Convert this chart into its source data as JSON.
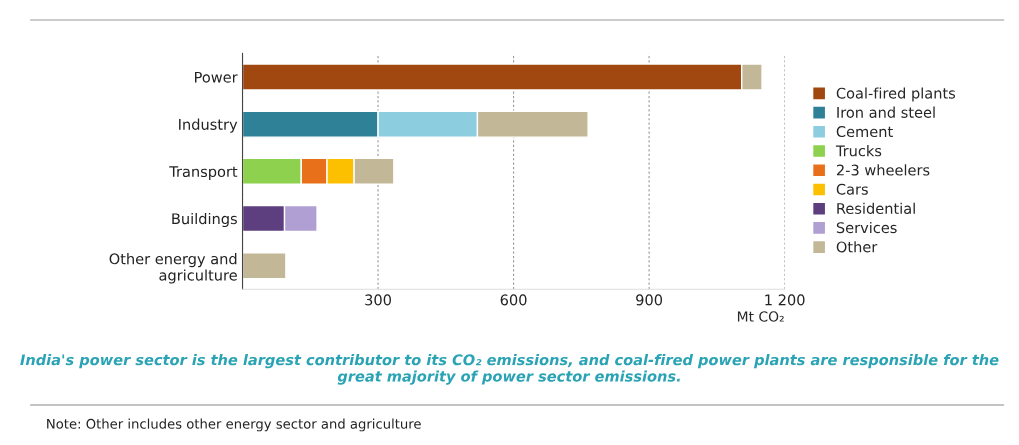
{
  "chart_data": {
    "type": "bar",
    "orientation": "horizontal",
    "stacked": true,
    "categories": [
      "Power",
      "Industry",
      "Transport",
      "Buildings",
      "Other energy and\nagriculture"
    ],
    "series": [
      {
        "name": "Coal-fired plants",
        "color": "#a0480f",
        "values": [
          1105,
          null,
          null,
          null,
          null
        ]
      },
      {
        "name": "Iron and steel",
        "color": "#2e8196",
        "values": [
          null,
          300,
          null,
          null,
          null
        ]
      },
      {
        "name": "Cement",
        "color": "#8dcde0",
        "values": [
          null,
          220,
          null,
          null,
          null
        ]
      },
      {
        "name": "Trucks",
        "color": "#8dd14f",
        "values": [
          null,
          null,
          130,
          null,
          null
        ]
      },
      {
        "name": "2-3 wheelers",
        "color": "#e8701a",
        "values": [
          null,
          null,
          57,
          null,
          null
        ]
      },
      {
        "name": "Cars",
        "color": "#fcc000",
        "values": [
          null,
          null,
          60,
          null,
          null
        ]
      },
      {
        "name": "Residential",
        "color": "#5d3f7f",
        "values": [
          null,
          null,
          null,
          93,
          null
        ]
      },
      {
        "name": "Services",
        "color": "#b09fd2",
        "values": [
          null,
          null,
          null,
          72,
          null
        ]
      },
      {
        "name": "Other",
        "color": "#c2b898",
        "values": [
          45,
          245,
          88,
          null,
          96
        ]
      }
    ],
    "xlabel": "Mt CO₂",
    "xlim": [
      0,
      1200
    ],
    "xticks": [
      {
        "value": 0,
        "label": null
      },
      300,
      600,
      900,
      {
        "value": 1200,
        "label": "1 200"
      }
    ],
    "grid": "x",
    "legend": "right",
    "annotations": [
      "India's power sector is the largest contributor to its CO₂ emissions, and coal-fired power plants are responsible for the great majority of power sector emissions.",
      "Note: Other includes other energy sector and agriculture"
    ]
  }
}
